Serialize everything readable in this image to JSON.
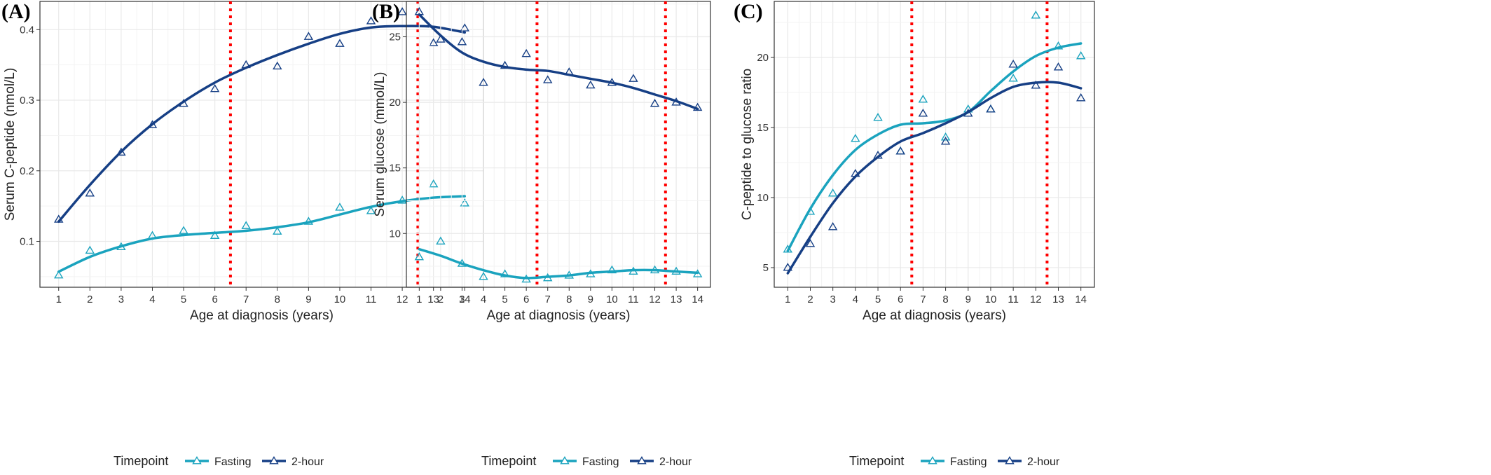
{
  "colors": {
    "fasting": "#1aa3be",
    "two_hour": "#163f85",
    "ref_line": "#ff0000",
    "grid": "#e9e9e9",
    "panel_border": "#333333"
  },
  "chart_data": [
    {
      "type": "scatter",
      "panel_label": "(A)",
      "xlabel": "Age at diagnosis (years)",
      "ylabel": "Serum C-peptide (nmol/L)",
      "xlim": [
        0.4,
        14.6
      ],
      "ylim": [
        0.035,
        0.44
      ],
      "x_ticks": [
        1,
        2,
        3,
        4,
        5,
        6,
        7,
        8,
        9,
        10,
        11,
        12,
        13,
        14
      ],
      "y_ticks": [
        0.1,
        0.2,
        0.3,
        0.4
      ],
      "y_tick_labels": [
        "0.1",
        "0.2",
        "0.3",
        "0.4"
      ],
      "vlines": [
        6.5,
        12.5
      ],
      "legend_title": "Timepoint",
      "legend_position": "bottom",
      "grid": true,
      "series": [
        {
          "name": "Fasting",
          "x": [
            1,
            2,
            3,
            4,
            5,
            6,
            7,
            8,
            9,
            10,
            11,
            12,
            13,
            14
          ],
          "points": [
            0.052,
            0.087,
            0.092,
            0.108,
            0.115,
            0.108,
            0.122,
            0.114,
            0.128,
            0.148,
            0.143,
            0.158,
            0.181,
            0.154
          ],
          "smooth": [
            0.057,
            0.078,
            0.093,
            0.104,
            0.109,
            0.112,
            0.115,
            0.12,
            0.127,
            0.138,
            0.149,
            0.157,
            0.162,
            0.164
          ]
        },
        {
          "name": "2-hour",
          "x": [
            1,
            2,
            3,
            4,
            5,
            6,
            7,
            8,
            9,
            10,
            11,
            12,
            13,
            14
          ],
          "points": [
            0.131,
            0.168,
            0.226,
            0.265,
            0.295,
            0.316,
            0.35,
            0.348,
            0.39,
            0.38,
            0.412,
            0.425,
            0.381,
            0.402
          ],
          "smooth": [
            0.128,
            0.18,
            0.227,
            0.266,
            0.298,
            0.325,
            0.346,
            0.364,
            0.38,
            0.394,
            0.403,
            0.405,
            0.404,
            0.396
          ]
        }
      ]
    },
    {
      "type": "scatter",
      "panel_label": "(B)",
      "xlabel": "Age at diagnosis (years)",
      "ylabel": "Serum glucose (mmol/L)",
      "xlim": [
        0.4,
        14.6
      ],
      "ylim": [
        5.9,
        27.7
      ],
      "x_ticks": [
        1,
        2,
        3,
        4,
        5,
        6,
        7,
        8,
        9,
        10,
        11,
        12,
        13,
        14
      ],
      "y_ticks": [
        10,
        15,
        20,
        25
      ],
      "y_tick_labels": [
        "10",
        "15",
        "20",
        "25"
      ],
      "vlines": [
        6.5,
        12.5
      ],
      "legend_title": "Timepoint",
      "legend_position": "bottom",
      "grid": true,
      "series": [
        {
          "name": "Fasting",
          "x": [
            1,
            2,
            3,
            4,
            5,
            6,
            7,
            8,
            9,
            10,
            11,
            12,
            13,
            14
          ],
          "points": [
            8.2,
            9.4,
            7.7,
            6.7,
            6.9,
            6.5,
            6.6,
            6.8,
            6.9,
            7.2,
            7.1,
            7.2,
            7.1,
            6.9
          ],
          "smooth": [
            8.8,
            8.3,
            7.7,
            7.2,
            6.8,
            6.6,
            6.7,
            6.8,
            7.0,
            7.1,
            7.2,
            7.2,
            7.1,
            7.0
          ]
        },
        {
          "name": "2-hour",
          "x": [
            1,
            2,
            3,
            4,
            5,
            6,
            7,
            8,
            9,
            10,
            11,
            12,
            13,
            14
          ],
          "points": [
            26.9,
            24.8,
            24.6,
            21.5,
            22.8,
            23.7,
            21.7,
            22.3,
            21.3,
            21.5,
            21.8,
            19.9,
            20.0,
            19.6
          ],
          "smooth": [
            26.7,
            25.1,
            23.8,
            23.1,
            22.7,
            22.5,
            22.4,
            22.1,
            21.8,
            21.5,
            21.1,
            20.6,
            20.1,
            19.5
          ]
        }
      ]
    },
    {
      "type": "scatter",
      "panel_label": "(C)",
      "xlabel": "Age at diagnosis (years)",
      "ylabel": "C-peptide to glucose ratio",
      "xlim": [
        0.4,
        14.6
      ],
      "ylim": [
        3.6,
        24.0
      ],
      "x_ticks": [
        1,
        2,
        3,
        4,
        5,
        6,
        7,
        8,
        9,
        10,
        11,
        12,
        13,
        14
      ],
      "y_ticks": [
        5,
        10,
        15,
        20
      ],
      "y_tick_labels": [
        "5",
        "10",
        "15",
        "20"
      ],
      "vlines": [
        6.5,
        12.5
      ],
      "legend_title": "Timepoint",
      "legend_position": "bottom",
      "grid": true,
      "series": [
        {
          "name": "Fasting",
          "x": [
            1,
            2,
            3,
            4,
            5,
            6,
            7,
            8,
            9,
            10,
            11,
            12,
            13,
            14
          ],
          "points": [
            6.3,
            9.0,
            10.3,
            14.2,
            15.7,
            13.3,
            17.0,
            14.3,
            16.3,
            16.3,
            18.5,
            23.0,
            20.8,
            20.1
          ],
          "smooth": [
            6.2,
            9.2,
            11.6,
            13.4,
            14.5,
            15.2,
            15.3,
            15.5,
            16.1,
            17.6,
            19.0,
            20.1,
            20.7,
            21.0
          ]
        },
        {
          "name": "2-hour",
          "x": [
            1,
            2,
            3,
            4,
            5,
            6,
            7,
            8,
            9,
            10,
            11,
            12,
            13,
            14
          ],
          "points": [
            5.0,
            6.7,
            7.9,
            11.7,
            13.0,
            13.3,
            16.0,
            14.0,
            16.0,
            16.3,
            19.5,
            18.0,
            19.3,
            17.1
          ],
          "smooth": [
            4.6,
            7.2,
            9.6,
            11.5,
            12.9,
            14.0,
            14.6,
            15.3,
            16.1,
            17.1,
            17.9,
            18.2,
            18.2,
            17.8
          ]
        }
      ]
    }
  ]
}
